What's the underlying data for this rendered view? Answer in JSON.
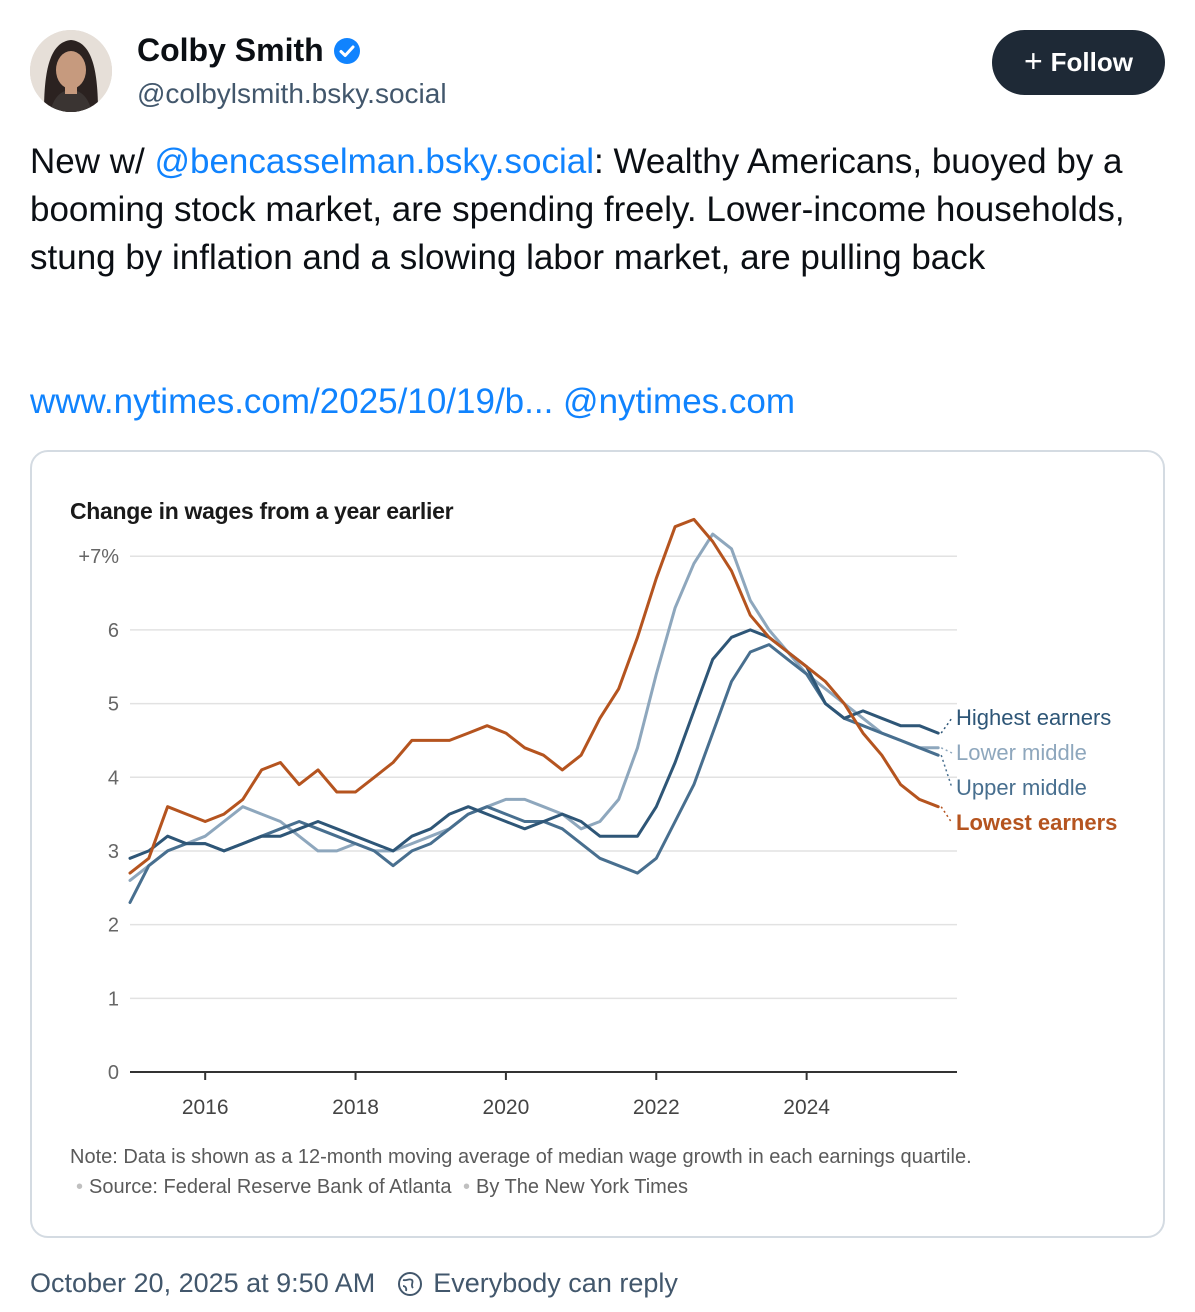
{
  "author": {
    "name": "Colby Smith",
    "handle": "@colbylsmith.bsky.social"
  },
  "follow_label": "Follow",
  "post": {
    "prefix": "New w/ ",
    "mention": "@bencasselman.bsky.social",
    "body": ": Wealthy Americans, buoyed by a booming stock market, are spending freely. Lower-income households, stung by inflation and a slowing labor market, are pulling back",
    "url_text": "www.nytimes.com/2025/10/19/b...",
    "domain_text": "@nytimes.com"
  },
  "chart_note": {
    "note": "Note: Data is shown as a 12-month moving average of median wage growth in each earnings quartile.",
    "source": "Source: Federal Reserve Bank of Atlanta",
    "byline": "By The New York Times"
  },
  "footer": {
    "timestamp": "October 20, 2025 at 9:50 AM",
    "reply_setting": "Everybody can reply"
  },
  "colors": {
    "lowest": "#b5541f",
    "lower_middle": "#8ea7bd",
    "upper_middle": "#486f8f",
    "highest": "#2e5677",
    "link": "#1083fe"
  },
  "chart_data": {
    "type": "line",
    "title": "Change in wages from a year earlier",
    "y_tick_labels": [
      "0",
      "1",
      "2",
      "3",
      "4",
      "5",
      "6",
      "+7%"
    ],
    "y_ticks": [
      0,
      1,
      2,
      3,
      4,
      5,
      6,
      7
    ],
    "x_tick_labels": [
      "2016",
      "2018",
      "2020",
      "2022",
      "2024"
    ],
    "x_ticks": [
      2016,
      2018,
      2020,
      2022,
      2024
    ],
    "xlim": [
      2015,
      2026
    ],
    "ylim": [
      0,
      7.6
    ],
    "series": [
      {
        "name": "Lowest earners",
        "key": "lowest",
        "x": [
          2015.0,
          2015.25,
          2015.5,
          2015.75,
          2016.0,
          2016.25,
          2016.5,
          2016.75,
          2017.0,
          2017.25,
          2017.5,
          2017.75,
          2018.0,
          2018.25,
          2018.5,
          2018.75,
          2019.0,
          2019.25,
          2019.5,
          2019.75,
          2020.0,
          2020.25,
          2020.5,
          2020.75,
          2021.0,
          2021.25,
          2021.5,
          2021.75,
          2022.0,
          2022.25,
          2022.5,
          2022.75,
          2023.0,
          2023.25,
          2023.5,
          2023.75,
          2024.0,
          2024.25,
          2024.5,
          2024.75,
          2025.0,
          2025.25,
          2025.5,
          2025.75
        ],
        "values": [
          2.7,
          2.9,
          3.6,
          3.5,
          3.4,
          3.5,
          3.7,
          4.1,
          4.2,
          3.9,
          4.1,
          3.8,
          3.8,
          4.0,
          4.2,
          4.5,
          4.5,
          4.5,
          4.6,
          4.7,
          4.6,
          4.4,
          4.3,
          4.1,
          4.3,
          4.8,
          5.2,
          5.9,
          6.7,
          7.4,
          7.5,
          7.2,
          6.8,
          6.2,
          5.9,
          5.7,
          5.5,
          5.3,
          5.0,
          4.6,
          4.3,
          3.9,
          3.7,
          3.6
        ]
      },
      {
        "name": "Lower middle",
        "key": "lower_middle",
        "x": [
          2015.0,
          2015.25,
          2015.5,
          2015.75,
          2016.0,
          2016.25,
          2016.5,
          2016.75,
          2017.0,
          2017.25,
          2017.5,
          2017.75,
          2018.0,
          2018.25,
          2018.5,
          2018.75,
          2019.0,
          2019.25,
          2019.5,
          2019.75,
          2020.0,
          2020.25,
          2020.5,
          2020.75,
          2021.0,
          2021.25,
          2021.5,
          2021.75,
          2022.0,
          2022.25,
          2022.5,
          2022.75,
          2023.0,
          2023.25,
          2023.5,
          2023.75,
          2024.0,
          2024.25,
          2024.5,
          2024.75,
          2025.0,
          2025.25,
          2025.5,
          2025.75
        ],
        "values": [
          2.6,
          2.8,
          3.0,
          3.1,
          3.2,
          3.4,
          3.6,
          3.5,
          3.4,
          3.2,
          3.0,
          3.0,
          3.1,
          3.0,
          3.0,
          3.1,
          3.2,
          3.3,
          3.5,
          3.6,
          3.7,
          3.7,
          3.6,
          3.5,
          3.3,
          3.4,
          3.7,
          4.4,
          5.4,
          6.3,
          6.9,
          7.3,
          7.1,
          6.4,
          6.0,
          5.7,
          5.4,
          5.2,
          5.0,
          4.8,
          4.6,
          4.5,
          4.4,
          4.4
        ]
      },
      {
        "name": "Upper middle",
        "key": "upper_middle",
        "x": [
          2015.0,
          2015.25,
          2015.5,
          2015.75,
          2016.0,
          2016.25,
          2016.5,
          2016.75,
          2017.0,
          2017.25,
          2017.5,
          2017.75,
          2018.0,
          2018.25,
          2018.5,
          2018.75,
          2019.0,
          2019.25,
          2019.5,
          2019.75,
          2020.0,
          2020.25,
          2020.5,
          2020.75,
          2021.0,
          2021.25,
          2021.5,
          2021.75,
          2022.0,
          2022.25,
          2022.5,
          2022.75,
          2023.0,
          2023.25,
          2023.5,
          2023.75,
          2024.0,
          2024.25,
          2024.5,
          2024.75,
          2025.0,
          2025.25,
          2025.5,
          2025.75
        ],
        "values": [
          2.3,
          2.8,
          3.0,
          3.1,
          3.1,
          3.0,
          3.1,
          3.2,
          3.3,
          3.4,
          3.3,
          3.2,
          3.1,
          3.0,
          2.8,
          3.0,
          3.1,
          3.3,
          3.5,
          3.6,
          3.5,
          3.4,
          3.4,
          3.3,
          3.1,
          2.9,
          2.8,
          2.7,
          2.9,
          3.4,
          3.9,
          4.6,
          5.3,
          5.7,
          5.8,
          5.6,
          5.4,
          5.0,
          4.8,
          4.7,
          4.6,
          4.5,
          4.4,
          4.3
        ]
      },
      {
        "name": "Highest earners",
        "key": "highest",
        "x": [
          2015.0,
          2015.25,
          2015.5,
          2015.75,
          2016.0,
          2016.25,
          2016.5,
          2016.75,
          2017.0,
          2017.25,
          2017.5,
          2017.75,
          2018.0,
          2018.25,
          2018.5,
          2018.75,
          2019.0,
          2019.25,
          2019.5,
          2019.75,
          2020.0,
          2020.25,
          2020.5,
          2020.75,
          2021.0,
          2021.25,
          2021.5,
          2021.75,
          2022.0,
          2022.25,
          2022.5,
          2022.75,
          2023.0,
          2023.25,
          2023.5,
          2023.75,
          2024.0,
          2024.25,
          2024.5,
          2024.75,
          2025.0,
          2025.25,
          2025.5,
          2025.75
        ],
        "values": [
          2.9,
          3.0,
          3.2,
          3.1,
          3.1,
          3.0,
          3.1,
          3.2,
          3.2,
          3.3,
          3.4,
          3.3,
          3.2,
          3.1,
          3.0,
          3.2,
          3.3,
          3.5,
          3.6,
          3.5,
          3.4,
          3.3,
          3.4,
          3.5,
          3.4,
          3.2,
          3.2,
          3.2,
          3.6,
          4.2,
          4.9,
          5.6,
          5.9,
          6.0,
          5.9,
          5.7,
          5.5,
          5.0,
          4.8,
          4.9,
          4.8,
          4.7,
          4.7,
          4.6
        ]
      }
    ]
  }
}
